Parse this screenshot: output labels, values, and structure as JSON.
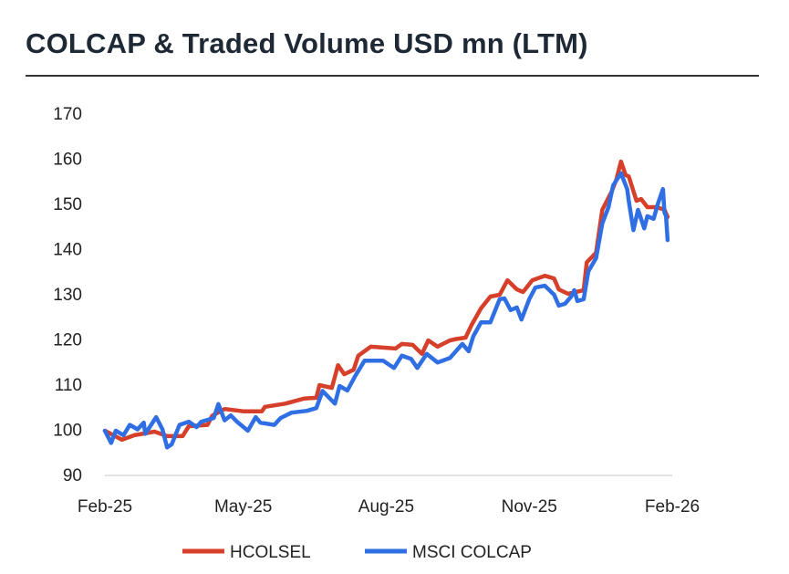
{
  "chart_data": {
    "type": "line",
    "title": "COLCAP & Traded Volume USD mn (LTM)",
    "xlabel": "",
    "ylabel": "",
    "ylim": [
      90,
      170
    ],
    "yticks": [
      "90",
      "100",
      "110",
      "120",
      "130",
      "140",
      "150",
      "160",
      "170"
    ],
    "xlim": [
      "2025-02-01",
      "2026-02-01"
    ],
    "xticks": [
      {
        "date": "2025-02-01",
        "label": "Feb-25"
      },
      {
        "date": "2025-05-01",
        "label": "May-25"
      },
      {
        "date": "2025-08-01",
        "label": "Aug-25"
      },
      {
        "date": "2025-11-01",
        "label": "Nov-25"
      },
      {
        "date": "2026-02-01",
        "label": "Feb-26"
      }
    ],
    "grid": false,
    "legend_position": "bottom",
    "series": [
      {
        "name": "HCOLSEL",
        "color": "#D63F2A",
        "points": [
          [
            "2025-02-01",
            99.7
          ],
          [
            "2025-02-12",
            97.7
          ],
          [
            "2025-02-20",
            98.7
          ],
          [
            "2025-03-05",
            99.5
          ],
          [
            "2025-03-13",
            98.5
          ],
          [
            "2025-03-23",
            98.5
          ],
          [
            "2025-03-27",
            100.7
          ],
          [
            "2025-04-08",
            101
          ],
          [
            "2025-04-11",
            103
          ],
          [
            "2025-04-19",
            104.5
          ],
          [
            "2025-05-01",
            104
          ],
          [
            "2025-05-13",
            104
          ],
          [
            "2025-05-15",
            105
          ],
          [
            "2025-05-28",
            105.7
          ],
          [
            "2025-06-09",
            106.8
          ],
          [
            "2025-06-17",
            107
          ],
          [
            "2025-06-19",
            109.8
          ],
          [
            "2025-06-27",
            109.2
          ],
          [
            "2025-07-01",
            114.2
          ],
          [
            "2025-07-05",
            112.2
          ],
          [
            "2025-07-11",
            113.2
          ],
          [
            "2025-07-14",
            116.3
          ],
          [
            "2025-07-22",
            118.3
          ],
          [
            "2025-08-07",
            117.9
          ],
          [
            "2025-08-11",
            118.9
          ],
          [
            "2025-08-18",
            118.7
          ],
          [
            "2025-08-24",
            116.7
          ],
          [
            "2025-08-28",
            119.7
          ],
          [
            "2025-09-03",
            118.3
          ],
          [
            "2025-09-11",
            119.7
          ],
          [
            "2025-09-15",
            120
          ],
          [
            "2025-09-21",
            120.3
          ],
          [
            "2025-09-25",
            123.2
          ],
          [
            "2025-10-01",
            126.8
          ],
          [
            "2025-10-07",
            129.4
          ],
          [
            "2025-10-13",
            129.8
          ],
          [
            "2025-10-18",
            133
          ],
          [
            "2025-10-24",
            131
          ],
          [
            "2025-10-28",
            130.4
          ],
          [
            "2025-11-03",
            133
          ],
          [
            "2025-11-11",
            134
          ],
          [
            "2025-11-17",
            133.4
          ],
          [
            "2025-11-20",
            131
          ],
          [
            "2025-11-26",
            130
          ],
          [
            "2025-12-06",
            130.8
          ],
          [
            "2025-12-08",
            137
          ],
          [
            "2025-12-14",
            139.1
          ],
          [
            "2025-12-18",
            148.6
          ],
          [
            "2025-12-24",
            152.6
          ],
          [
            "2025-12-27",
            155.3
          ],
          [
            "2025-12-30",
            159.3
          ],
          [
            "2026-01-02",
            156.3
          ],
          [
            "2026-01-04",
            156
          ],
          [
            "2026-01-09",
            150.6
          ],
          [
            "2026-01-12",
            151
          ],
          [
            "2026-01-16",
            149.2
          ],
          [
            "2026-01-22",
            149.2
          ],
          [
            "2026-01-27",
            148.6
          ],
          [
            "2026-01-29",
            147
          ]
        ]
      },
      {
        "name": "MSCI COLCAP",
        "color": "#2F6FE3",
        "points": [
          [
            "2025-02-01",
            99.7
          ],
          [
            "2025-02-05",
            97
          ],
          [
            "2025-02-08",
            99.7
          ],
          [
            "2025-02-13",
            98.7
          ],
          [
            "2025-02-17",
            101
          ],
          [
            "2025-02-22",
            100
          ],
          [
            "2025-02-26",
            101.5
          ],
          [
            "2025-02-27",
            99
          ],
          [
            "2025-03-06",
            102.7
          ],
          [
            "2025-03-10",
            100
          ],
          [
            "2025-03-13",
            96
          ],
          [
            "2025-03-16",
            96.7
          ],
          [
            "2025-03-21",
            101
          ],
          [
            "2025-03-27",
            101.7
          ],
          [
            "2025-04-01",
            100.5
          ],
          [
            "2025-04-04",
            101.7
          ],
          [
            "2025-04-12",
            102.5
          ],
          [
            "2025-04-15",
            105.6
          ],
          [
            "2025-04-19",
            102
          ],
          [
            "2025-04-23",
            103.1
          ],
          [
            "2025-04-27",
            101.7
          ],
          [
            "2025-05-04",
            99.7
          ],
          [
            "2025-05-09",
            102.7
          ],
          [
            "2025-05-12",
            101.5
          ],
          [
            "2025-05-21",
            101
          ],
          [
            "2025-05-25",
            102.5
          ],
          [
            "2025-06-01",
            103.7
          ],
          [
            "2025-06-11",
            104.1
          ],
          [
            "2025-06-17",
            104.7
          ],
          [
            "2025-06-21",
            108.5
          ],
          [
            "2025-06-29",
            105.7
          ],
          [
            "2025-07-02",
            109.6
          ],
          [
            "2025-07-07",
            108.6
          ],
          [
            "2025-07-12",
            111.8
          ],
          [
            "2025-07-18",
            115.2
          ],
          [
            "2025-07-30",
            115.2
          ],
          [
            "2025-08-06",
            113.6
          ],
          [
            "2025-08-11",
            116.3
          ],
          [
            "2025-08-17",
            115.6
          ],
          [
            "2025-08-21",
            113.6
          ],
          [
            "2025-08-27",
            116.7
          ],
          [
            "2025-09-03",
            114.8
          ],
          [
            "2025-09-11",
            115.8
          ],
          [
            "2025-09-19",
            118.9
          ],
          [
            "2025-09-23",
            117.3
          ],
          [
            "2025-09-26",
            120.6
          ],
          [
            "2025-10-01",
            123.7
          ],
          [
            "2025-10-07",
            123.7
          ],
          [
            "2025-10-13",
            128.8
          ],
          [
            "2025-10-16",
            129
          ],
          [
            "2025-10-20",
            126.4
          ],
          [
            "2025-10-24",
            127
          ],
          [
            "2025-10-27",
            124.3
          ],
          [
            "2025-11-01",
            128.8
          ],
          [
            "2025-11-05",
            131.4
          ],
          [
            "2025-11-11",
            131.8
          ],
          [
            "2025-11-17",
            129.8
          ],
          [
            "2025-11-20",
            127.4
          ],
          [
            "2025-11-24",
            127.8
          ],
          [
            "2025-11-28",
            129.4
          ],
          [
            "2025-11-30",
            130.8
          ],
          [
            "2025-12-02",
            128.4
          ],
          [
            "2025-12-06",
            128.8
          ],
          [
            "2025-12-09",
            135
          ],
          [
            "2025-12-14",
            137.9
          ],
          [
            "2025-12-18",
            145.6
          ],
          [
            "2025-12-22",
            149.2
          ],
          [
            "2025-12-25",
            154
          ],
          [
            "2025-12-30",
            156.7
          ],
          [
            "2026-01-03",
            153.2
          ],
          [
            "2026-01-04",
            150.6
          ],
          [
            "2026-01-07",
            144.1
          ],
          [
            "2026-01-10",
            148.6
          ],
          [
            "2026-01-14",
            144.5
          ],
          [
            "2026-01-16",
            147.2
          ],
          [
            "2026-01-20",
            146.6
          ],
          [
            "2026-01-23",
            150.2
          ],
          [
            "2026-01-26",
            153.2
          ],
          [
            "2026-01-27",
            148
          ],
          [
            "2026-01-28",
            147.2
          ],
          [
            "2026-01-29",
            141.9
          ]
        ]
      }
    ]
  }
}
